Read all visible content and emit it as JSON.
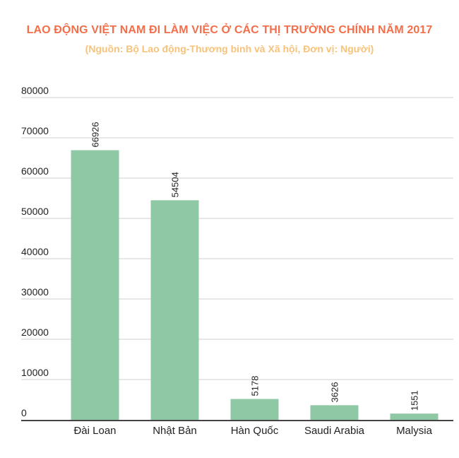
{
  "title": "LAO ĐỘNG VIỆT NAM ĐI LÀM VIỆC Ở CÁC THỊ TRƯỜNG CHÍNH NĂM 2017",
  "subtitle": "(Nguồn: Bộ Lao động-Thương binh và Xã hội, Đơn vị: Người)",
  "colors": {
    "title": "#f26f4b",
    "subtitle": "#f7c27a",
    "bar": "#8fc8a4",
    "grid": "#cfcfcf",
    "axis": "#444444",
    "text": "#222222"
  },
  "chart_data": {
    "type": "bar",
    "categories": [
      "Đài Loan",
      "Nhật Bản",
      "Hàn Quốc",
      "Saudi Arabia",
      "Malysia"
    ],
    "values": [
      66926,
      54504,
      5178,
      3626,
      1551
    ],
    "data_labels": [
      "66926",
      "54504",
      "5178",
      "3626",
      "1551"
    ],
    "ylim": [
      0,
      80000
    ],
    "yticks": [
      "0",
      "10000",
      "20000",
      "30000",
      "40000",
      "50000",
      "60000",
      "70000",
      "80000"
    ],
    "xlabel": "",
    "ylabel": "",
    "grid": true,
    "legend": "none"
  }
}
